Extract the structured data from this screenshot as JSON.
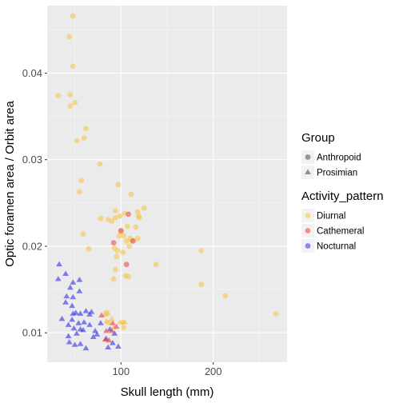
{
  "chart_data": {
    "type": "scatter",
    "xlabel": "Skull length (mm)",
    "ylabel": "Optic foramen area / Orbit area",
    "xlim": [
      20,
      280
    ],
    "ylim": [
      0.0066,
      0.0478
    ],
    "x_ticks": [
      100,
      200
    ],
    "x_tick_labels": [
      "100",
      "200"
    ],
    "y_ticks": [
      0.01,
      0.02,
      0.03,
      0.04
    ],
    "y_tick_labels": [
      "0.01",
      "0.02",
      "0.03",
      "0.04"
    ],
    "grid": true,
    "legend_position": "right",
    "legends": [
      {
        "title": "Group",
        "kind": "shape",
        "entries": [
          {
            "label": "Anthropoid",
            "shape": "circle"
          },
          {
            "label": "Prosimian",
            "shape": "triangle"
          }
        ]
      },
      {
        "title": "Activity_pattern",
        "kind": "color",
        "entries": [
          {
            "label": "Diurnal",
            "color": "#F5C242"
          },
          {
            "label": "Cathemeral",
            "color": "#E8423B"
          },
          {
            "label": "Nocturnal",
            "color": "#3030E8"
          }
        ]
      }
    ],
    "series": [
      {
        "group": "Anthropoid",
        "activity": "Diurnal",
        "shape": "circle",
        "color": "#F5C242",
        "points": [
          [
            48,
            0.0466
          ],
          [
            44,
            0.0442
          ],
          [
            48,
            0.0408
          ],
          [
            32,
            0.0374
          ],
          [
            45,
            0.0375
          ],
          [
            50,
            0.0366
          ],
          [
            45,
            0.0362
          ],
          [
            62,
            0.0336
          ],
          [
            60,
            0.0325
          ],
          [
            52,
            0.0322
          ],
          [
            77,
            0.0295
          ],
          [
            57,
            0.0276
          ],
          [
            55,
            0.0263
          ],
          [
            97,
            0.0271
          ],
          [
            111,
            0.026
          ],
          [
            125,
            0.0244
          ],
          [
            94,
            0.0241
          ],
          [
            118,
            0.024
          ],
          [
            104,
            0.0238
          ],
          [
            119,
            0.0235
          ],
          [
            99,
            0.0235
          ],
          [
            120,
            0.0233
          ],
          [
            94,
            0.0233
          ],
          [
            78,
            0.0232
          ],
          [
            86,
            0.0231
          ],
          [
            90,
            0.0229
          ],
          [
            107,
            0.0223
          ],
          [
            116,
            0.0222
          ],
          [
            100,
            0.0217
          ],
          [
            59,
            0.0214
          ],
          [
            98,
            0.0212
          ],
          [
            103,
            0.0212
          ],
          [
            110,
            0.0209
          ],
          [
            118,
            0.0209
          ],
          [
            106,
            0.0206
          ],
          [
            112,
            0.0207
          ],
          [
            109,
            0.02
          ],
          [
            93,
            0.0198
          ],
          [
            65,
            0.0197
          ],
          [
            96,
            0.0195
          ],
          [
            187,
            0.0195
          ],
          [
            102,
            0.0193
          ],
          [
            95,
            0.0188
          ],
          [
            138,
            0.0179
          ],
          [
            94,
            0.0173
          ],
          [
            105,
            0.0166
          ],
          [
            108,
            0.0165
          ],
          [
            92,
            0.0162
          ],
          [
            187,
            0.0156
          ],
          [
            213,
            0.0143
          ],
          [
            268,
            0.0122
          ],
          [
            84,
            0.0123
          ],
          [
            86,
            0.0112
          ],
          [
            102,
            0.0112
          ],
          [
            103,
            0.0106
          ]
        ]
      },
      {
        "group": "Anthropoid",
        "activity": "Cathemeral",
        "shape": "circle",
        "color": "#E8423B",
        "points": [
          [
            108,
            0.0237
          ],
          [
            100,
            0.0218
          ],
          [
            113,
            0.0206
          ],
          [
            92,
            0.0204
          ],
          [
            106,
            0.0179
          ]
        ]
      },
      {
        "group": "Prosimian",
        "activity": "Nocturnal",
        "shape": "triangle",
        "color": "#3030E8",
        "points": [
          [
            33,
            0.0179
          ],
          [
            40,
            0.0168
          ],
          [
            32,
            0.0162
          ],
          [
            55,
            0.0161
          ],
          [
            48,
            0.0158
          ],
          [
            45,
            0.0152
          ],
          [
            55,
            0.0148
          ],
          [
            41,
            0.0142
          ],
          [
            48,
            0.0141
          ],
          [
            40,
            0.0135
          ],
          [
            47,
            0.0131
          ],
          [
            62,
            0.0125
          ],
          [
            68,
            0.0124
          ],
          [
            51,
            0.0123
          ],
          [
            56,
            0.0122
          ],
          [
            48,
            0.0122
          ],
          [
            66,
            0.0121
          ],
          [
            36,
            0.0116
          ],
          [
            47,
            0.0115
          ],
          [
            60,
            0.0112
          ],
          [
            54,
            0.0111
          ],
          [
            43,
            0.0109
          ],
          [
            66,
            0.0109
          ],
          [
            49,
            0.0105
          ],
          [
            59,
            0.0103
          ],
          [
            52,
            0.0099
          ],
          [
            56,
            0.0104
          ],
          [
            43,
            0.0096
          ],
          [
            44,
            0.0089
          ],
          [
            50,
            0.0086
          ],
          [
            56,
            0.0087
          ],
          [
            62,
            0.0082
          ],
          [
            70,
            0.0095
          ],
          [
            74,
            0.0098
          ],
          [
            72,
            0.0102
          ],
          [
            78,
            0.0111
          ],
          [
            88,
            0.0104
          ],
          [
            93,
            0.0099
          ],
          [
            91,
            0.0088
          ],
          [
            97,
            0.0084
          ],
          [
            86,
            0.0083
          ],
          [
            84,
            0.0093
          ]
        ]
      },
      {
        "group": "Prosimian",
        "activity": "Diurnal",
        "shape": "triangle",
        "color": "#F5C242",
        "points": [
          [
            86,
            0.0122
          ],
          [
            83,
            0.0121
          ],
          [
            90,
            0.0116
          ],
          [
            99,
            0.0112
          ],
          [
            104,
            0.0112
          ],
          [
            84,
            0.0113
          ],
          [
            92,
            0.0106
          ]
        ]
      },
      {
        "group": "Prosimian",
        "activity": "Cathemeral",
        "shape": "triangle",
        "color": "#E8423B",
        "points": [
          [
            79,
            0.012
          ],
          [
            91,
            0.0111
          ],
          [
            95,
            0.0107
          ],
          [
            84,
            0.0102
          ],
          [
            90,
            0.0102
          ],
          [
            87,
            0.0091
          ],
          [
            83,
            0.0092
          ]
        ]
      }
    ]
  }
}
